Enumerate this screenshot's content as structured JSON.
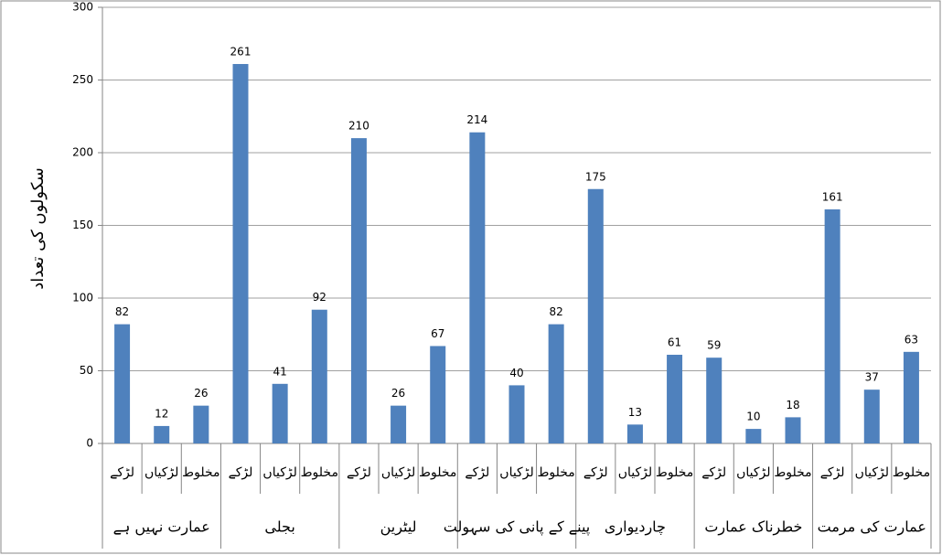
{
  "chart_data": {
    "type": "bar",
    "y_label": "سکولوں کی تعداد",
    "categories": [
      "لڑکے",
      "لڑکیاں",
      "مخلوط",
      "لڑکے",
      "لڑکیاں",
      "مخلوط",
      "لڑکے",
      "لڑکیاں",
      "مخلوط",
      "لڑکے",
      "لڑکیاں",
      "مخلوط",
      "لڑکے",
      "لڑکیاں",
      "مخلوط",
      "لڑکے",
      "لڑکیاں",
      "مخلوط",
      "لڑکے",
      "لڑکیاں",
      "مخلوط"
    ],
    "groups": [
      "عمارت نہیں ہے",
      "بجلی",
      "لیٹرین",
      "پینے کے پانی کی سہولت",
      "چاردیواری",
      "خطرناک عمارت",
      "عمارت کی مرمت"
    ],
    "values": [
      82,
      12,
      26,
      261,
      41,
      92,
      210,
      26,
      67,
      214,
      40,
      82,
      175,
      13,
      61,
      59,
      10,
      18,
      161,
      37,
      63
    ],
    "color": "#4f81bd",
    "ylim": [
      0,
      300
    ],
    "yticks": [
      0,
      50,
      100,
      150,
      200,
      250,
      300
    ],
    "grid": true
  }
}
